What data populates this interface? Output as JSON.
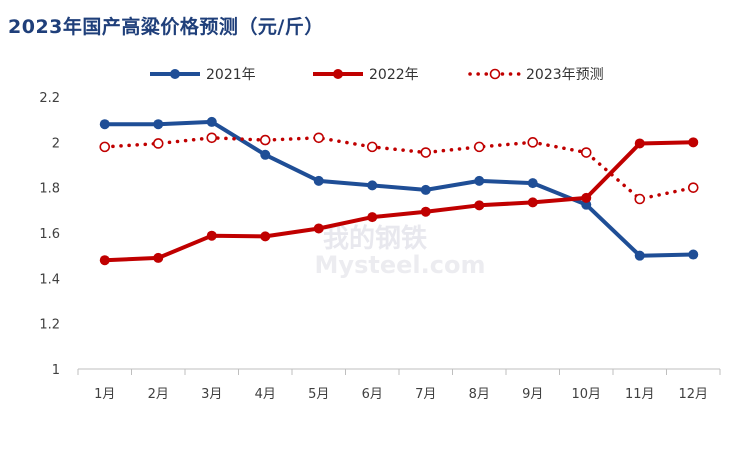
{
  "title": "2023年国产高粱价格预测（元/斤）",
  "watermark": {
    "cn": "我的钢铁",
    "en": "Mysteel.com"
  },
  "chart_data": {
    "type": "line",
    "title": "2023年国产高粱价格预测（元/斤）",
    "categories": [
      "1月",
      "2月",
      "3月",
      "4月",
      "5月",
      "6月",
      "7月",
      "8月",
      "9月",
      "10月",
      "11月",
      "12月"
    ],
    "ylim": [
      1,
      2.2
    ],
    "yticks": [
      "1",
      "1.2",
      "1.4",
      "1.6",
      "1.8",
      "2",
      "2.2"
    ],
    "grid": false,
    "legend_position": "top",
    "series": [
      {
        "name": "2021年",
        "color": "#1f4e96",
        "style": "solid-filled",
        "values": [
          2.08,
          2.08,
          2.09,
          1.945,
          1.83,
          1.81,
          1.79,
          1.83,
          1.82,
          1.725,
          1.5,
          1.505
        ]
      },
      {
        "name": "2022年",
        "color": "#c00000",
        "style": "solid-filled",
        "values": [
          1.48,
          1.49,
          1.588,
          1.585,
          1.62,
          1.67,
          1.694,
          1.722,
          1.735,
          1.755,
          1.995,
          2.0
        ]
      },
      {
        "name": "2023年预测",
        "color": "#c00000",
        "style": "dotted-hollow",
        "values": [
          1.98,
          1.995,
          2.02,
          2.01,
          2.02,
          1.98,
          1.955,
          1.98,
          2.0,
          1.955,
          1.75,
          1.8
        ]
      }
    ]
  }
}
